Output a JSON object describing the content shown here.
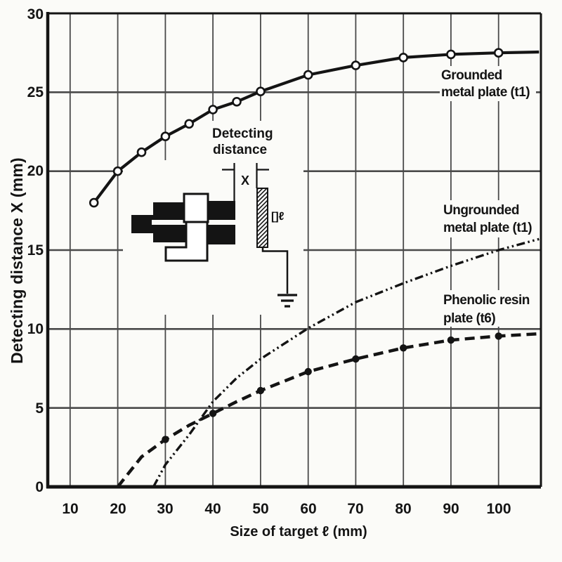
{
  "chart_data": {
    "type": "line",
    "title": "",
    "xlabel": "Size of target ℓ (mm)",
    "ylabel": "Detecting distance X (mm)",
    "xlim": [
      5.3,
      108.9
    ],
    "ylim": [
      0,
      30
    ],
    "grid": "on",
    "legend_position": "inline-right",
    "x_gridlines": [
      10,
      20,
      30,
      40,
      50,
      60,
      70,
      80,
      90,
      100
    ],
    "y_gridlines": [
      5,
      10,
      15,
      20,
      25
    ],
    "x_tick_labels": [
      "10",
      "20",
      "30",
      "40",
      "50",
      "60",
      "70",
      "80",
      "90",
      "100"
    ],
    "y_tick_labels": [
      "30",
      "25",
      "20",
      "15",
      "10",
      "5",
      "0"
    ],
    "colors": {
      "ink": "#141414",
      "grid": "#4a4a4a",
      "paper": "#fbfbf8"
    },
    "series": [
      {
        "name": "Grounded metal plate (t1)",
        "label_lines": [
          "Grounded",
          "metal plate (t1)"
        ],
        "line_style": "solid",
        "marker": "open-circle",
        "x": [
          15,
          20,
          25,
          30,
          35,
          40,
          45,
          50,
          60,
          70,
          80,
          90,
          100,
          108.5
        ],
        "y": [
          18,
          20,
          21.2,
          22.2,
          23,
          23.9,
          24.4,
          25.05,
          26.1,
          26.7,
          27.2,
          27.4,
          27.5,
          27.55
        ],
        "marker_x": [
          15,
          20,
          25,
          30,
          35,
          40,
          45,
          50,
          60,
          70,
          80,
          90,
          100
        ],
        "marker_y": [
          18,
          20,
          21.2,
          22.2,
          23,
          23.9,
          24.4,
          25.05,
          26.1,
          26.7,
          27.2,
          27.4,
          27.5
        ]
      },
      {
        "name": "Ungrounded metal plate (t1)",
        "label_lines": [
          "Ungrounded",
          "metal plate (t1)"
        ],
        "line_style": "dash-dot-dot",
        "marker": "none",
        "x": [
          27.5,
          30,
          35,
          40,
          45,
          50,
          60,
          70,
          80,
          90,
          100,
          108.5
        ],
        "y": [
          0,
          1.4,
          3.3,
          5.4,
          6.9,
          8.1,
          10.05,
          11.7,
          12.9,
          14,
          15,
          15.7
        ],
        "marker_x": [],
        "marker_y": []
      },
      {
        "name": "Phenolic resin plate (t6)",
        "label_lines": [
          "Phenolic resin",
          "plate (t6)"
        ],
        "line_style": "long-dash",
        "marker": "filled-circle",
        "x": [
          20,
          25,
          30,
          35,
          40,
          45,
          50,
          60,
          70,
          80,
          90,
          100,
          108.5
        ],
        "y": [
          0,
          1.9,
          3,
          3.9,
          4.65,
          5.4,
          6.1,
          7.3,
          8.1,
          8.8,
          9.3,
          9.55,
          9.7
        ],
        "marker_x": [
          30,
          40,
          50,
          60,
          70,
          80,
          90,
          100
        ],
        "marker_y": [
          3,
          4.65,
          6.1,
          7.3,
          8.1,
          8.8,
          9.3,
          9.55
        ]
      }
    ],
    "annotations": {
      "detecting_distance": [
        "Detecting",
        "distance"
      ],
      "x_dim": "X",
      "target_size": "[]ℓ"
    }
  }
}
